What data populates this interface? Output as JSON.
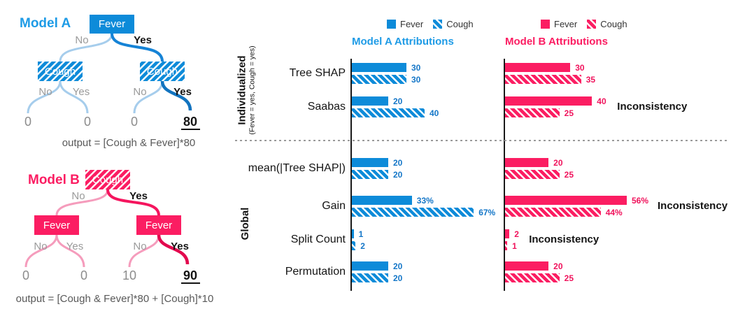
{
  "colors": {
    "model_a_blue": "#0D8BD9",
    "model_a_title_blue": "#1E9BE6",
    "model_b_pink": "#FB1D62",
    "branch_no_gray": "#9A9A9A",
    "caption_gray": "#595959",
    "inconsistency_text": "#141414"
  },
  "tree_a": {
    "title": "Model A",
    "root": "Fever",
    "left_child": "Cough",
    "right_child": "Cough",
    "branches": {
      "root_no": "No",
      "root_yes": "Yes",
      "left_no": "No",
      "left_yes": "Yes",
      "right_no": "No",
      "right_yes": "Yes"
    },
    "leaves": [
      "0",
      "0",
      "0",
      "80"
    ],
    "caption": "output = [Cough & Fever]*80"
  },
  "tree_b": {
    "title": "Model B",
    "root": "Cough",
    "left_child": "Fever",
    "right_child": "Fever",
    "branches": {
      "root_no": "No",
      "root_yes": "Yes",
      "left_no": "No",
      "left_yes": "Yes",
      "right_no": "No",
      "right_yes": "Yes"
    },
    "leaves": [
      "0",
      "0",
      "10",
      "90"
    ],
    "caption": "output = [Cough & Fever]*80 + [Cough]*10"
  },
  "charts": {
    "legend": {
      "fever": "Fever",
      "cough": "Cough"
    },
    "model_a_title": "Model A Attributions",
    "model_b_title": "Model B Attributions",
    "sections": {
      "individualized": {
        "label": "Individualized",
        "sublabel": "(Fever = yes, Cough = yes)"
      },
      "global": {
        "label": "Global"
      }
    },
    "inconsistency_label": "Inconsistency",
    "rows": [
      {
        "label": "Tree SHAP",
        "a": {
          "fever": 30,
          "cough": 30,
          "fever_text": "30",
          "cough_text": "30"
        },
        "b": {
          "fever": 30,
          "cough": 35,
          "fever_text": "30",
          "cough_text": "35",
          "inconsistency": false
        }
      },
      {
        "label": "Saabas",
        "a": {
          "fever": 20,
          "cough": 40,
          "fever_text": "20",
          "cough_text": "40"
        },
        "b": {
          "fever": 40,
          "cough": 25,
          "fever_text": "40",
          "cough_text": "25",
          "inconsistency": true
        }
      },
      {
        "label": "mean(|Tree SHAP|)",
        "a": {
          "fever": 20,
          "cough": 20,
          "fever_text": "20",
          "cough_text": "20"
        },
        "b": {
          "fever": 20,
          "cough": 25,
          "fever_text": "20",
          "cough_text": "25",
          "inconsistency": false
        }
      },
      {
        "label": "Gain",
        "a": {
          "fever": 33,
          "cough": 67,
          "fever_text": "33%",
          "cough_text": "67%"
        },
        "b": {
          "fever": 56,
          "cough": 44,
          "fever_text": "56%",
          "cough_text": "44%",
          "inconsistency": true
        }
      },
      {
        "label": "Split Count",
        "a": {
          "fever": 1,
          "cough": 2,
          "fever_text": "1",
          "cough_text": "2"
        },
        "b": {
          "fever": 2,
          "cough": 1,
          "fever_text": "2",
          "cough_text": "1",
          "inconsistency": true
        }
      },
      {
        "label": "Permutation",
        "a": {
          "fever": 20,
          "cough": 20,
          "fever_text": "20",
          "cough_text": "20"
        },
        "b": {
          "fever": 20,
          "cough": 25,
          "fever_text": "20",
          "cough_text": "25",
          "inconsistency": false
        }
      }
    ]
  },
  "chart_data": [
    {
      "type": "bar",
      "orientation": "horizontal",
      "title": "Model A Attributions",
      "categories": [
        "Tree SHAP",
        "Saabas",
        "mean(|Tree SHAP|)",
        "Gain",
        "Split Count",
        "Permutation"
      ],
      "series": [
        {
          "name": "Fever",
          "values": [
            30,
            20,
            20,
            33,
            1,
            20
          ]
        },
        {
          "name": "Cough",
          "values": [
            30,
            40,
            20,
            67,
            2,
            20
          ]
        }
      ],
      "value_label_texts": {
        "Fever": [
          "30",
          "20",
          "20",
          "33%",
          "1",
          "20"
        ],
        "Cough": [
          "30",
          "40",
          "20",
          "67%",
          "2",
          "20"
        ]
      },
      "sections": {
        "Individualized (Fever = yes, Cough = yes)": [
          "Tree SHAP",
          "Saabas"
        ],
        "Global": [
          "mean(|Tree SHAP|)",
          "Gain",
          "Split Count",
          "Permutation"
        ]
      },
      "legend_position": "top",
      "grid": false,
      "inconsistent_rows": []
    },
    {
      "type": "bar",
      "orientation": "horizontal",
      "title": "Model B Attributions",
      "categories": [
        "Tree SHAP",
        "Saabas",
        "mean(|Tree SHAP|)",
        "Gain",
        "Split Count",
        "Permutation"
      ],
      "series": [
        {
          "name": "Fever",
          "values": [
            30,
            40,
            20,
            56,
            2,
            20
          ]
        },
        {
          "name": "Cough",
          "values": [
            35,
            25,
            25,
            44,
            1,
            25
          ]
        }
      ],
      "value_label_texts": {
        "Fever": [
          "30",
          "40",
          "20",
          "56%",
          "2",
          "20"
        ],
        "Cough": [
          "35",
          "25",
          "25",
          "44%",
          "1",
          "25"
        ]
      },
      "sections": {
        "Individualized (Fever = yes, Cough = yes)": [
          "Tree SHAP",
          "Saabas"
        ],
        "Global": [
          "mean(|Tree SHAP|)",
          "Gain",
          "Split Count",
          "Permutation"
        ]
      },
      "legend_position": "top",
      "grid": false,
      "inconsistent_rows": [
        "Saabas",
        "Gain",
        "Split Count"
      ]
    }
  ]
}
